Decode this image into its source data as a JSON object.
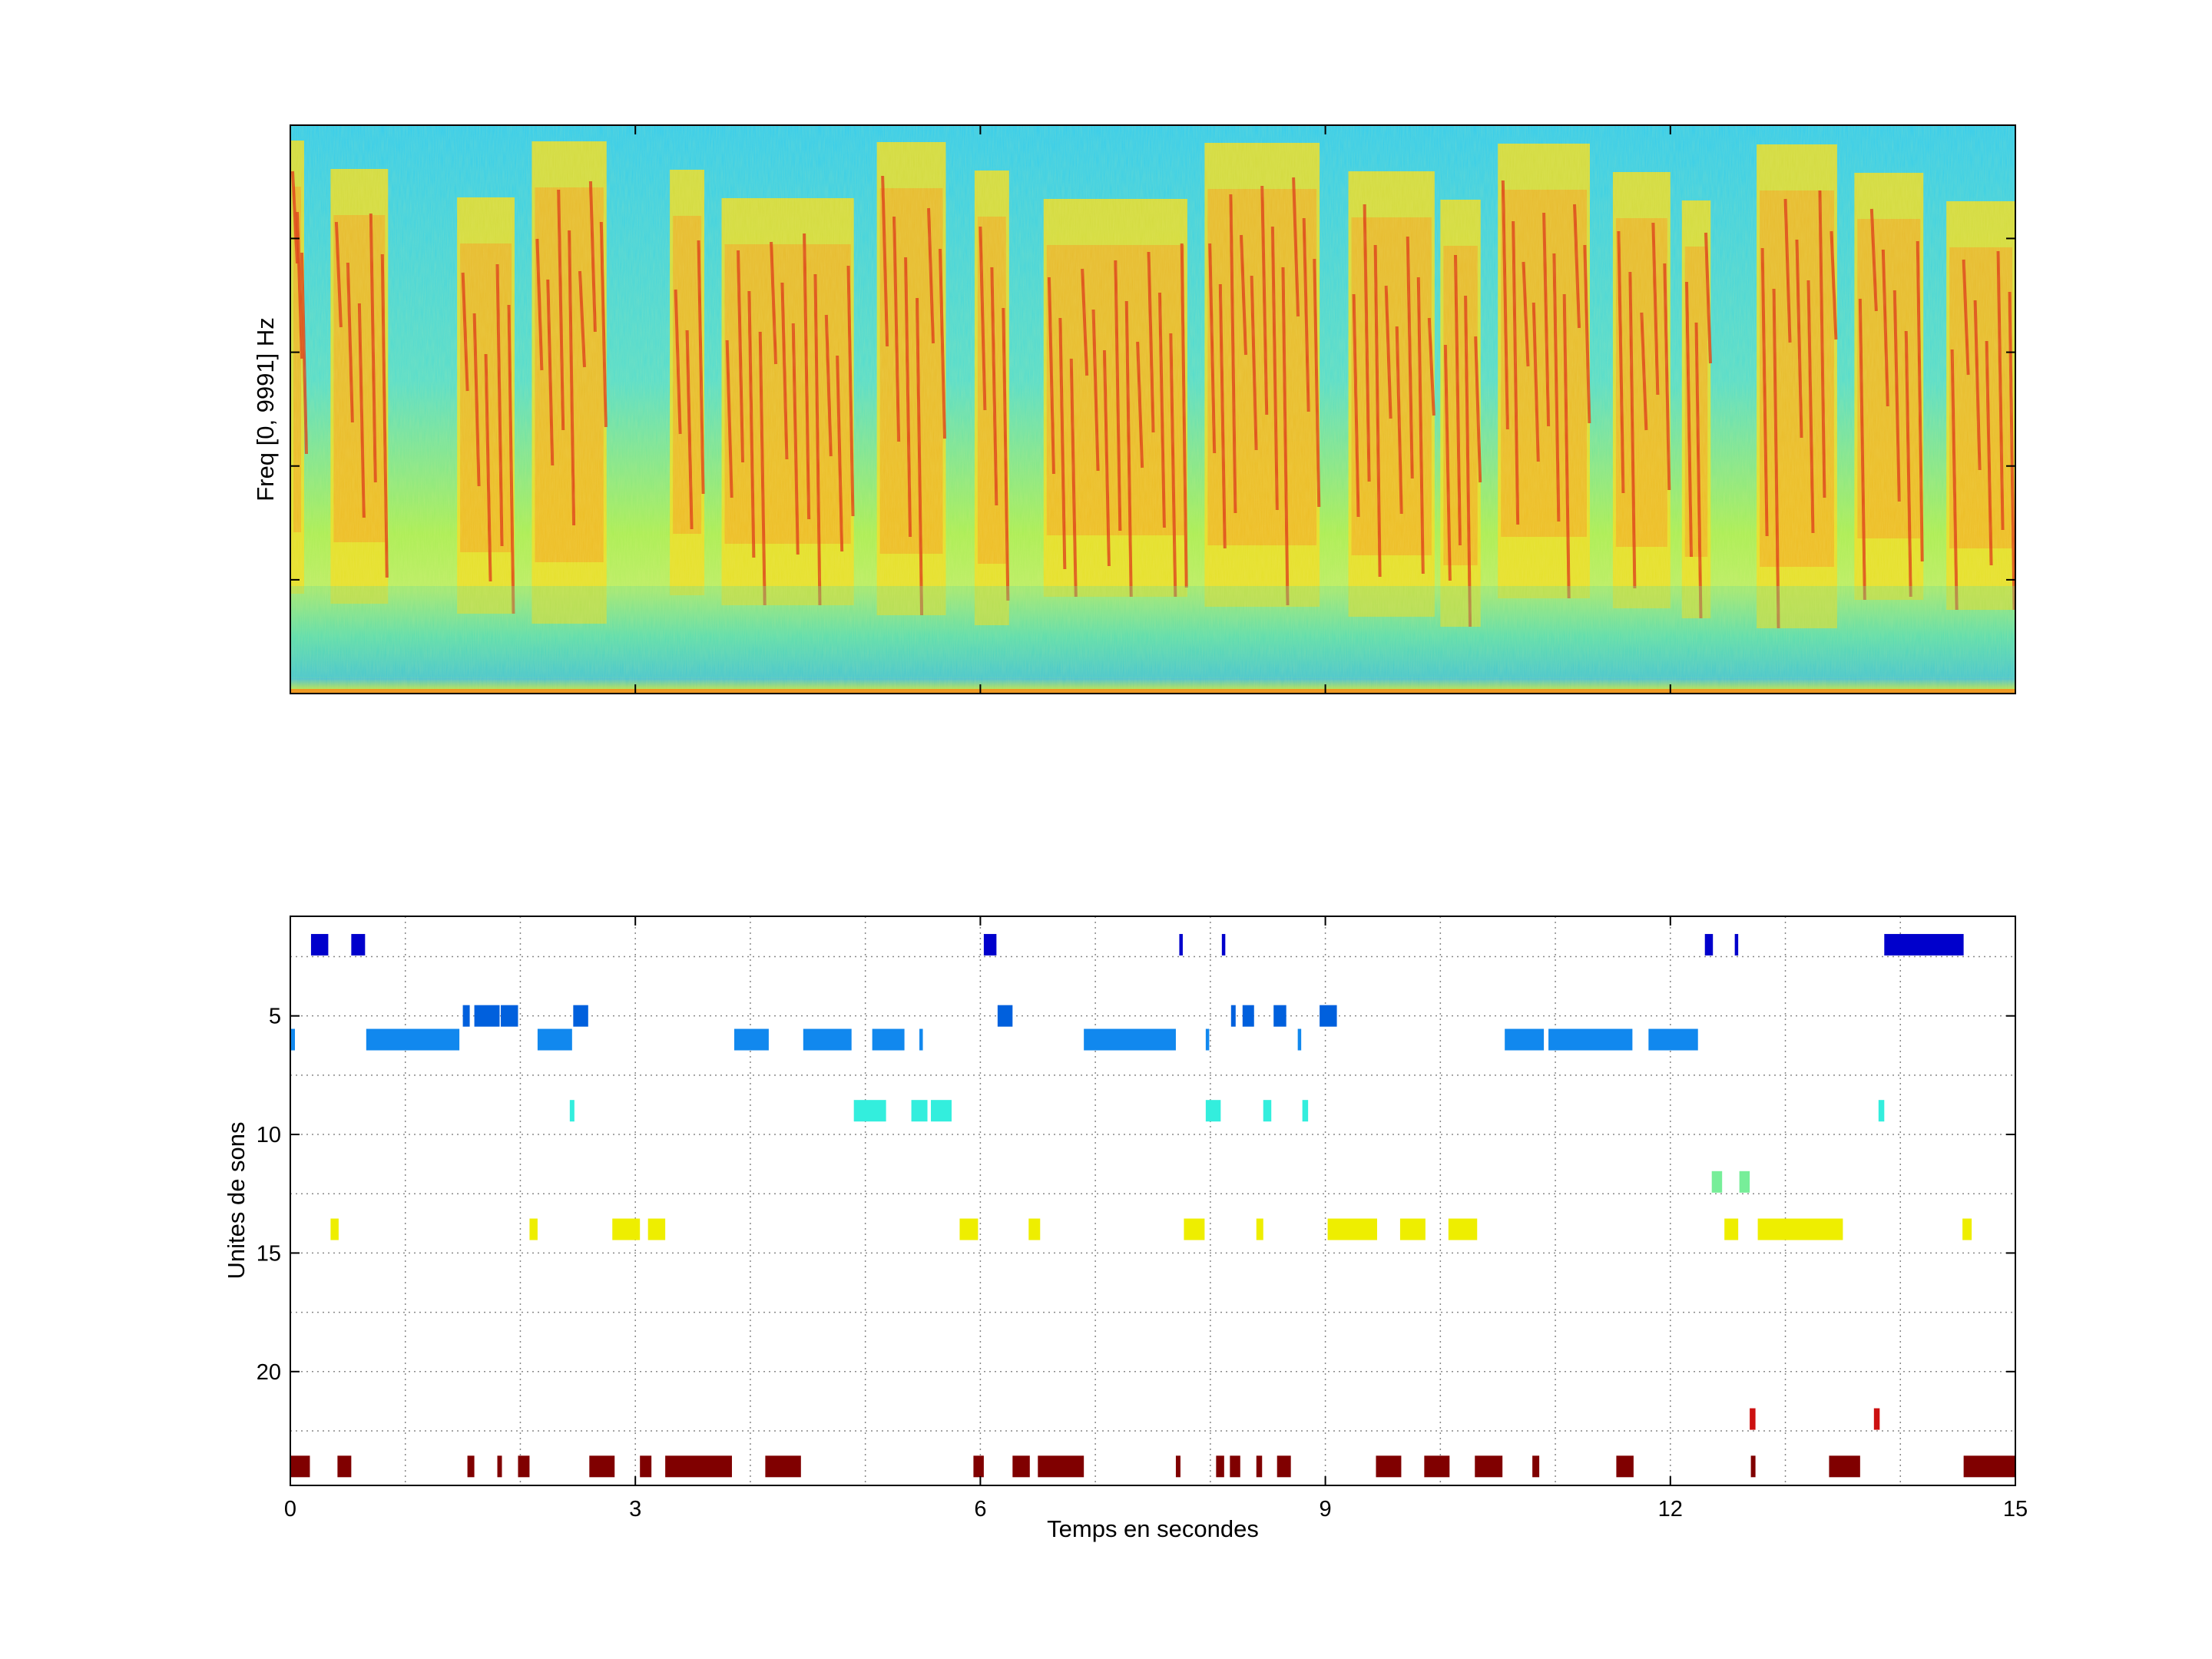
{
  "chart_data": [
    {
      "type": "heatmap",
      "title": "",
      "xlabel": "",
      "ylabel": "Freq [0, 9991] Hz",
      "xlim": [
        0,
        15
      ],
      "ylim": [
        0,
        9991
      ],
      "colormap": "jet",
      "x_tick_labels": [],
      "y_tick_labels": []
    },
    {
      "type": "bar",
      "subtype": "event-raster",
      "title": "",
      "xlabel": "Temps en secondes",
      "ylabel": "Unites de sons",
      "xlim": [
        0,
        15
      ],
      "ylim": [
        0.8,
        24.8
      ],
      "y_reversed": true,
      "grid": true,
      "x_ticks": [
        0,
        3,
        6,
        9,
        12,
        15
      ],
      "x_tick_labels": [
        "0",
        "3",
        "6",
        "9",
        "12",
        "15"
      ],
      "y_ticks": [
        5,
        10,
        15,
        20
      ],
      "y_tick_labels": [
        "5",
        "10",
        "15",
        "20"
      ],
      "series": [
        {
          "unit": 2,
          "color": "#0000cc",
          "intervals": [
            [
              0.18,
              0.33
            ],
            [
              0.53,
              0.65
            ],
            [
              6.03,
              6.14
            ],
            [
              7.73,
              7.76
            ],
            [
              8.1,
              8.13
            ],
            [
              12.3,
              12.37
            ],
            [
              12.56,
              12.59
            ],
            [
              13.86,
              14.55
            ]
          ]
        },
        {
          "unit": 5,
          "color": "#0060dd",
          "intervals": [
            [
              1.5,
              1.56
            ],
            [
              1.6,
              1.82
            ],
            [
              1.83,
              1.98
            ],
            [
              2.46,
              2.59
            ],
            [
              6.15,
              6.28
            ],
            [
              8.18,
              8.22
            ],
            [
              8.28,
              8.38
            ],
            [
              8.55,
              8.66
            ],
            [
              8.95,
              9.1
            ]
          ]
        },
        {
          "unit": 6,
          "color": "#1188ee",
          "intervals": [
            [
              0.0,
              0.04
            ],
            [
              0.66,
              1.47
            ],
            [
              2.15,
              2.45
            ],
            [
              3.86,
              4.16
            ],
            [
              4.46,
              4.88
            ],
            [
              5.06,
              5.34
            ],
            [
              5.47,
              5.5
            ],
            [
              6.9,
              7.7
            ],
            [
              7.96,
              7.99
            ],
            [
              8.76,
              8.79
            ],
            [
              10.56,
              10.9
            ],
            [
              10.94,
              11.67
            ],
            [
              11.81,
              12.24
            ]
          ]
        },
        {
          "unit": 9,
          "color": "#33eedd",
          "intervals": [
            [
              2.43,
              2.47
            ],
            [
              4.9,
              5.18
            ],
            [
              5.4,
              5.54
            ],
            [
              5.57,
              5.75
            ],
            [
              7.96,
              8.09
            ],
            [
              8.46,
              8.53
            ],
            [
              8.8,
              8.85
            ],
            [
              13.81,
              13.86
            ]
          ]
        },
        {
          "unit": 12,
          "color": "#77ee99",
          "intervals": [
            [
              12.36,
              12.45
            ],
            [
              12.6,
              12.69
            ]
          ]
        },
        {
          "unit": 14,
          "color": "#eeee00",
          "intervals": [
            [
              0.35,
              0.42
            ],
            [
              2.08,
              2.15
            ],
            [
              2.8,
              3.04
            ],
            [
              3.11,
              3.26
            ],
            [
              5.82,
              5.98
            ],
            [
              6.42,
              6.52
            ],
            [
              7.77,
              7.95
            ],
            [
              8.4,
              8.46
            ],
            [
              9.02,
              9.45
            ],
            [
              9.65,
              9.87
            ],
            [
              10.07,
              10.32
            ],
            [
              12.47,
              12.59
            ],
            [
              12.76,
              13.5
            ],
            [
              14.54,
              14.62
            ]
          ]
        },
        {
          "unit": 22,
          "color": "#cc1111",
          "intervals": [
            [
              12.69,
              12.74
            ],
            [
              13.77,
              13.82
            ]
          ]
        },
        {
          "unit": 24,
          "color": "#800000",
          "intervals": [
            [
              0.0,
              0.17
            ],
            [
              0.41,
              0.53
            ],
            [
              1.54,
              1.6
            ],
            [
              1.8,
              1.84
            ],
            [
              1.98,
              2.08
            ],
            [
              2.6,
              2.82
            ],
            [
              3.04,
              3.14
            ],
            [
              3.26,
              3.84
            ],
            [
              4.13,
              4.44
            ],
            [
              5.94,
              6.03
            ],
            [
              6.28,
              6.43
            ],
            [
              6.5,
              6.9
            ],
            [
              7.7,
              7.74
            ],
            [
              8.05,
              8.12
            ],
            [
              8.17,
              8.26
            ],
            [
              8.4,
              8.45
            ],
            [
              8.58,
              8.7
            ],
            [
              9.44,
              9.66
            ],
            [
              9.86,
              10.08
            ],
            [
              10.3,
              10.54
            ],
            [
              10.8,
              10.86
            ],
            [
              11.53,
              11.68
            ],
            [
              12.7,
              12.74
            ],
            [
              13.38,
              13.65
            ],
            [
              14.55,
              15.0
            ]
          ]
        }
      ]
    }
  ]
}
